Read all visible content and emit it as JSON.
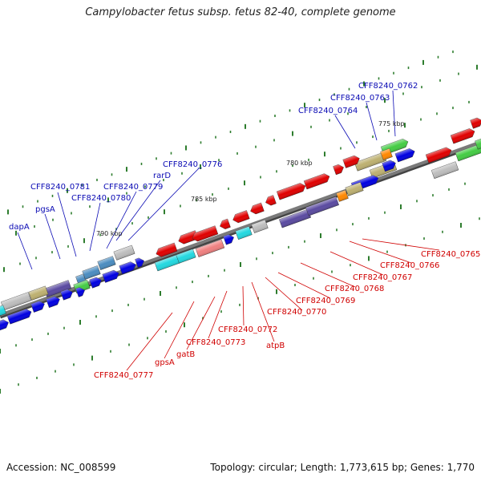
{
  "title": "Campylobacter fetus subsp. fetus 82-40, complete genome",
  "footer": {
    "accession": "Accession: NC_008599",
    "stats": "Topology: circular; Length: 1,773,615 bp; Genes: 1,770"
  },
  "colors": {
    "backbone": "#7a7a7a",
    "tick": "#2e7d2e",
    "label_top": "#0a0ab4",
    "label_bottom": "#d00000",
    "gene_blue": "#0000e0",
    "gene_red": "#e00000",
    "gene_cyan": "#22d8e0",
    "gene_grey": "#bdbdbd",
    "gene_khaki": "#bdb070",
    "gene_green": "#44cc44",
    "gene_purple": "#5a4aa0",
    "gene_steel": "#4a8cc0",
    "gene_pink": "#f08080",
    "gene_orange": "#ff8800"
  },
  "scale_labels": [
    "775 kbp",
    "780 kbp",
    "785 kbp",
    "790 kbp"
  ],
  "labels_top": [
    "CFF8240_0762",
    "CFF8240_0763",
    "CFF8240_0764",
    "CFF8240_0776",
    "rarD",
    "CFF8240_0779",
    "CFF8240_0780",
    "CFF8240_0781",
    "pgsA",
    "dapA"
  ],
  "labels_bottom": [
    "CFF8240_0765",
    "CFF8240_0766",
    "CFF8240_0767",
    "CFF8240_0768",
    "CFF8240_0769",
    "CFF8240_0770",
    "atpB",
    "CFF8240_0772",
    "CFF8240_0773",
    "gatB",
    "gpsA",
    "CFF8240_0777"
  ]
}
